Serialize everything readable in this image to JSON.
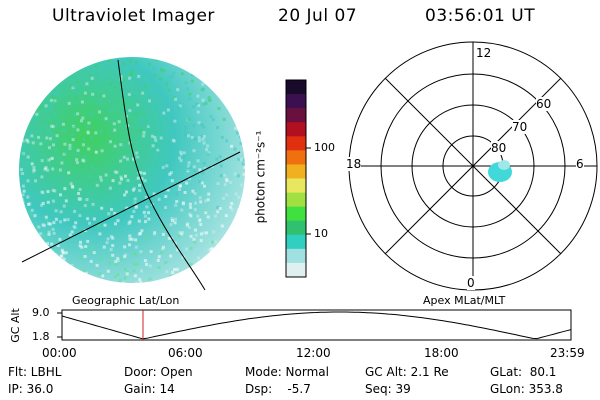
{
  "header": {
    "instrument": "Ultraviolet Imager",
    "date": "20 Jul 07",
    "time": "03:56:01 UT"
  },
  "colorbar": {
    "unit_label": "photon cm⁻²s⁻¹",
    "ticks": [
      "100",
      "10"
    ],
    "colors": [
      "#1a0a2a",
      "#3c1050",
      "#6a1040",
      "#b01020",
      "#e03010",
      "#f07010",
      "#f0b020",
      "#e8e860",
      "#a0e040",
      "#40e040",
      "#30c070",
      "#30d0c0",
      "#a0e0e0",
      "#e0f0f0"
    ]
  },
  "left_map": {
    "projection_label": "Geographic Lat/Lon",
    "colors": {
      "green": "#40d060",
      "cyan": "#40c8c0",
      "light": "#c8ecec"
    }
  },
  "polar_plot": {
    "projection_label": "Apex MLat/MLT",
    "mlt_labels": {
      "top": "12",
      "bottom": "0",
      "left": "18",
      "right": "6"
    },
    "lat_labels": [
      "60",
      "70",
      "80"
    ],
    "blob_color": "#40d8d8"
  },
  "altitude_plot": {
    "ylabel": "GC Alt",
    "yticks": [
      "9.0",
      "1.8"
    ],
    "xticks": [
      "00:00",
      "06:00",
      "12:00",
      "18:00",
      "23:59"
    ],
    "marker_color": "#d02020"
  },
  "footer": {
    "filter": "Flt: LBHL",
    "ip": "IP: 36.0",
    "door": "Door: Open",
    "gain": "Gain: 14",
    "mode": "Mode: Normal",
    "dsp": "Dsp:    -5.7",
    "gc_alt": "GC Alt: 2.1 Re",
    "seq": "Seq: 39",
    "glat": "GLat:  80.1",
    "glon": "GLon: 353.8"
  }
}
